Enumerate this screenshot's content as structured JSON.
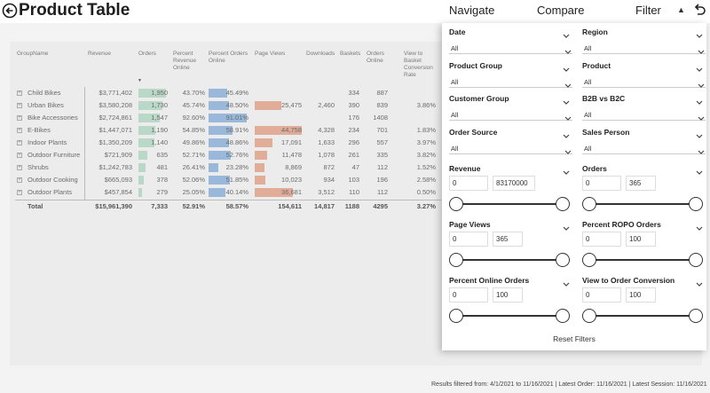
{
  "header": {
    "title": "Product Table",
    "nav": {
      "navigate": "Navigate",
      "compare": "Compare",
      "filter": "Filter"
    }
  },
  "table": {
    "columns": [
      "GroupName",
      "Revenue",
      "Orders",
      "Percent Revenue Online",
      "Percent Orders Online",
      "Page Views",
      "Downloads",
      "Baskets",
      "Orders Online",
      "View to Basket Conversion Rate"
    ],
    "rows": [
      {
        "name": "Child Bikes",
        "revenue": "$3,771,402",
        "orders": "1,950",
        "pct_rev": "43.70%",
        "pct_orders": "45.49%",
        "page_views": "",
        "downloads": "",
        "baskets": "334",
        "orders_online": "887",
        "conv": "",
        "orders_frac": 0.93,
        "pct_orders_frac": 0.47,
        "pv_frac": 0
      },
      {
        "name": "Urban Bikes",
        "revenue": "$3,580,208",
        "orders": "1,730",
        "pct_rev": "45.74%",
        "pct_orders": "48.50%",
        "page_views": "25,475",
        "downloads": "2,460",
        "baskets": "390",
        "orders_online": "839",
        "conv": "3.86%",
        "orders_frac": 0.83,
        "pct_orders_frac": 0.5,
        "pv_frac": 0.57
      },
      {
        "name": "Bike Accessories",
        "revenue": "$2,724,861",
        "orders": "1,547",
        "pct_rev": "92.60%",
        "pct_orders": "91.01%",
        "page_views": "",
        "downloads": "",
        "baskets": "176",
        "orders_online": "1408",
        "conv": "",
        "orders_frac": 0.74,
        "pct_orders_frac": 0.95,
        "pv_frac": 0
      },
      {
        "name": "E-Bikes",
        "revenue": "$1,447,071",
        "orders": "1,190",
        "pct_rev": "54.85%",
        "pct_orders": "58.91%",
        "page_views": "44,758",
        "downloads": "4,328",
        "baskets": "234",
        "orders_online": "701",
        "conv": "1.83%",
        "orders_frac": 0.57,
        "pct_orders_frac": 0.61,
        "pv_frac": 1.0
      },
      {
        "name": "Indoor Plants",
        "revenue": "$1,350,209",
        "orders": "1,140",
        "pct_rev": "49.86%",
        "pct_orders": "48.86%",
        "page_views": "17,091",
        "downloads": "1,633",
        "baskets": "296",
        "orders_online": "557",
        "conv": "3.97%",
        "orders_frac": 0.55,
        "pct_orders_frac": 0.5,
        "pv_frac": 0.38
      },
      {
        "name": "Outdoor Furniture",
        "revenue": "$721,909",
        "orders": "635",
        "pct_rev": "52.71%",
        "pct_orders": "52.76%",
        "page_views": "11,478",
        "downloads": "1,078",
        "baskets": "261",
        "orders_online": "335",
        "conv": "3.82%",
        "orders_frac": 0.3,
        "pct_orders_frac": 0.55,
        "pv_frac": 0.26
      },
      {
        "name": "Shrubs",
        "revenue": "$1,242,783",
        "orders": "481",
        "pct_rev": "26.41%",
        "pct_orders": "23.28%",
        "page_views": "8,869",
        "downloads": "872",
        "baskets": "47",
        "orders_online": "112",
        "conv": "1.52%",
        "orders_frac": 0.23,
        "pct_orders_frac": 0.24,
        "pv_frac": 0.2
      },
      {
        "name": "Outdoor Cooking",
        "revenue": "$665,093",
        "orders": "378",
        "pct_rev": "52.06%",
        "pct_orders": "51.85%",
        "page_views": "10,023",
        "downloads": "934",
        "baskets": "103",
        "orders_online": "196",
        "conv": "2.58%",
        "orders_frac": 0.18,
        "pct_orders_frac": 0.54,
        "pv_frac": 0.22
      },
      {
        "name": "Outdoor Plants",
        "revenue": "$457,854",
        "orders": "279",
        "pct_rev": "25.05%",
        "pct_orders": "40.14%",
        "page_views": "36,681",
        "downloads": "3,512",
        "baskets": "110",
        "orders_online": "112",
        "conv": "0.50%",
        "orders_frac": 0.13,
        "pct_orders_frac": 0.42,
        "pv_frac": 0.82
      }
    ],
    "total": {
      "name": "Total",
      "revenue": "$15,961,390",
      "orders": "7,333",
      "pct_rev": "52.91%",
      "pct_orders": "58.57%",
      "page_views": "154,611",
      "downloads": "14,817",
      "baskets": "1188",
      "orders_online": "4295",
      "conv": "3.27%"
    }
  },
  "filters": {
    "dropdowns": [
      {
        "label": "Date",
        "value": "All"
      },
      {
        "label": "Region",
        "value": "All"
      },
      {
        "label": "Product Group",
        "value": "All"
      },
      {
        "label": "Product",
        "value": "All"
      },
      {
        "label": "Customer Group",
        "value": "All"
      },
      {
        "label": "B2B vs B2C",
        "value": "All"
      },
      {
        "label": "Order Source",
        "value": "All"
      },
      {
        "label": "Sales Person",
        "value": "All"
      }
    ],
    "ranges": [
      {
        "label": "Revenue",
        "min": "0",
        "max": "83170000"
      },
      {
        "label": "Orders",
        "min": "0",
        "max": "365"
      },
      {
        "label": "Page Views",
        "min": "0",
        "max": "365"
      },
      {
        "label": "Percent ROPO Orders",
        "min": "0",
        "max": "100"
      },
      {
        "label": "Percent Online Orders",
        "min": "0",
        "max": "100"
      },
      {
        "label": "View to Order Conversion",
        "min": "0",
        "max": "100"
      }
    ],
    "reset_label": "Reset Filters"
  },
  "footer": {
    "status": "Results filtered from: 4/1/2021 to 11/16/2021  |  Latest Order: 11/16/2021  |  Latest Session: 11/16/2021"
  },
  "icons": {
    "back": "back-arrow-circle-icon",
    "reset": "undo-icon",
    "collapse": "triangle-up-icon"
  }
}
